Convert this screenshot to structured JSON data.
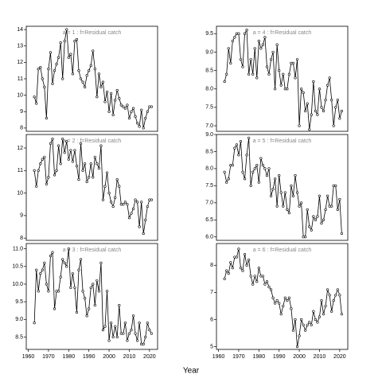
{
  "chart_data": {
    "type": "line",
    "xlabel": "Year",
    "x": [
      1963,
      1964,
      1965,
      1966,
      1967,
      1968,
      1969,
      1970,
      1971,
      1972,
      1973,
      1974,
      1975,
      1976,
      1977,
      1978,
      1979,
      1980,
      1981,
      1982,
      1983,
      1984,
      1985,
      1986,
      1987,
      1988,
      1989,
      1990,
      1991,
      1992,
      1993,
      1994,
      1995,
      1996,
      1997,
      1998,
      1999,
      2000,
      2001,
      2002,
      2003,
      2004,
      2005,
      2006,
      2007,
      2008,
      2009,
      2010,
      2011,
      2012,
      2013,
      2014,
      2015,
      2016,
      2017,
      2018,
      2019,
      2020,
      2021
    ],
    "xlim": [
      1959,
      2024
    ],
    "xticks": [
      1960,
      1970,
      1980,
      1990,
      2000,
      2010,
      2020
    ],
    "series": [
      {
        "name": "a = 1  :  f=Residual catch",
        "color": "#000000",
        "ylim": [
          7.8,
          14.2
        ],
        "yticks": [
          8,
          9,
          10,
          11,
          12,
          13,
          14
        ],
        "values": [
          9.9,
          9.5,
          11.6,
          11.7,
          11.0,
          10.5,
          8.6,
          11.6,
          12.6,
          10.7,
          11.5,
          11.9,
          12.3,
          13.2,
          11.0,
          13.3,
          14.0,
          12.3,
          12.5,
          11.3,
          13.3,
          13.4,
          11.5,
          11.0,
          10.8,
          10.5,
          11.2,
          11.5,
          11.8,
          12.7,
          11.6,
          9.9,
          11.3,
          10.5,
          10.8,
          9.6,
          10.2,
          9.0,
          10.1,
          8.8,
          9.7,
          10.3,
          9.8,
          9.4,
          9.3,
          9.2,
          9.4,
          8.6,
          9.0,
          9.2,
          8.7,
          8.3,
          8.1,
          9.1,
          8.0,
          8.6,
          9.0,
          9.3,
          9.3
        ]
      },
      {
        "name": "a = 2  :  f=Residual catch",
        "color": "#000000",
        "ylim": [
          7.9,
          12.6
        ],
        "yticks": [
          8,
          9,
          10,
          11,
          12
        ],
        "values": [
          11.0,
          10.3,
          11.0,
          11.3,
          11.5,
          11.6,
          10.4,
          10.7,
          12.2,
          12.4,
          10.8,
          11.0,
          12.1,
          11.3,
          12.4,
          11.8,
          12.3,
          11.5,
          11.9,
          11.4,
          11.9,
          11.2,
          10.6,
          12.2,
          11.0,
          11.3,
          10.5,
          10.7,
          11.3,
          10.7,
          11.6,
          11.3,
          11.1,
          12.1,
          9.7,
          10.3,
          10.9,
          10.0,
          9.6,
          9.4,
          9.8,
          10.6,
          10.3,
          9.5,
          9.5,
          9.6,
          9.5,
          8.9,
          9.1,
          9.3,
          9.7,
          9.6,
          8.5,
          9.6,
          8.2,
          8.8,
          9.4,
          9.7,
          9.7
        ]
      },
      {
        "name": "a = 3  :  f=Residual catch",
        "color": "#000000",
        "ylim": [
          8.15,
          11.15
        ],
        "yticks": [
          8.5,
          {
            "value": 9,
            "label": "9.0"
          },
          9.5,
          {
            "value": 10,
            "label": "10.0"
          },
          10.5,
          {
            "value": 11,
            "label": "11.0"
          }
        ],
        "values": [
          8.9,
          10.4,
          9.8,
          10.3,
          10.4,
          10.6,
          10.0,
          9.8,
          10.8,
          10.9,
          9.3,
          9.8,
          9.8,
          10.2,
          10.7,
          10.6,
          10.5,
          11.0,
          9.9,
          10.3,
          9.9,
          9.2,
          10.4,
          10.7,
          9.8,
          9.6,
          9.1,
          9.3,
          9.9,
          10.0,
          9.4,
          10.1,
          9.8,
          10.6,
          8.7,
          8.8,
          9.8,
          8.4,
          8.9,
          8.5,
          8.8,
          8.5,
          9.4,
          8.6,
          8.6,
          8.9,
          8.4,
          8.6,
          8.7,
          9.1,
          8.6,
          8.4,
          8.9,
          8.3,
          8.3,
          8.5,
          8.9,
          8.7,
          8.6
        ]
      },
      {
        "name": "a = 4  :  f=Residual catch",
        "color": "#000000",
        "ylim": [
          6.85,
          9.7
        ],
        "yticks": [
          {
            "value": 7,
            "label": "7.0"
          },
          7.5,
          {
            "value": 8,
            "label": "8.0"
          },
          8.5,
          {
            "value": 9,
            "label": "9.0"
          },
          9.5
        ],
        "values": [
          8.2,
          8.4,
          9.1,
          8.7,
          9.3,
          9.4,
          9.5,
          9.5,
          8.8,
          8.6,
          9.5,
          9.6,
          8.4,
          8.8,
          8.4,
          9.1,
          8.3,
          9.3,
          9.1,
          9.2,
          9.4,
          8.6,
          8.4,
          8.8,
          9.0,
          8.0,
          9.2,
          8.5,
          8.1,
          8.4,
          8.0,
          8.0,
          8.4,
          8.7,
          8.7,
          8.3,
          8.8,
          7.0,
          8.0,
          7.9,
          7.4,
          7.6,
          6.9,
          7.3,
          8.2,
          7.4,
          7.3,
          8.0,
          7.5,
          7.4,
          7.7,
          8.1,
          8.3,
          7.7,
          7.0,
          7.5,
          7.7,
          7.2,
          7.4
        ]
      },
      {
        "name": "a = 5  :  f=Residual catch",
        "color": "#000000",
        "ylim": [
          5.9,
          9.0
        ],
        "yticks": [
          {
            "value": 6,
            "label": "6.0"
          },
          6.5,
          {
            "value": 7,
            "label": "7.0"
          },
          7.5,
          {
            "value": 8,
            "label": "8.0"
          },
          8.5,
          {
            "value": 9,
            "label": "9.0"
          }
        ],
        "values": [
          7.9,
          7.6,
          7.7,
          8.1,
          8.1,
          8.6,
          8.7,
          8.4,
          8.8,
          7.9,
          7.7,
          8.4,
          8.9,
          7.5,
          7.9,
          8.0,
          8.1,
          7.6,
          8.3,
          8.1,
          8.0,
          7.8,
          8.0,
          7.2,
          7.4,
          7.7,
          6.9,
          7.8,
          7.3,
          6.9,
          7.3,
          6.8,
          6.7,
          7.5,
          7.2,
          7.8,
          7.3,
          6.9,
          7.0,
          6.0,
          6.0,
          6.8,
          6.3,
          6.2,
          6.6,
          6.5,
          6.6,
          7.2,
          6.4,
          6.5,
          6.8,
          7.2,
          6.9,
          6.9,
          7.5,
          7.5,
          6.8,
          7.1,
          6.1
        ]
      },
      {
        "name": "a = 6  :  f=Residual catch",
        "color": "#000000",
        "ylim": [
          4.9,
          8.8
        ],
        "yticks": [
          5,
          6,
          7,
          8
        ],
        "values": [
          7.5,
          7.8,
          7.7,
          8.1,
          7.9,
          8.3,
          8.3,
          8.6,
          7.9,
          7.8,
          8.4,
          8.0,
          8.2,
          7.6,
          7.3,
          7.6,
          7.4,
          7.9,
          7.6,
          7.6,
          7.3,
          7.4,
          7.2,
          7.1,
          6.8,
          6.6,
          6.7,
          6.6,
          6.2,
          6.5,
          6.8,
          6.7,
          6.8,
          6.4,
          5.6,
          6.0,
          5.0,
          5.4,
          6.0,
          5.8,
          5.6,
          5.8,
          5.9,
          5.8,
          6.3,
          6.0,
          5.9,
          6.1,
          6.7,
          6.2,
          6.5,
          7.1,
          6.9,
          6.3,
          6.7,
          6.9,
          7.1,
          6.9,
          6.2
        ]
      }
    ]
  }
}
